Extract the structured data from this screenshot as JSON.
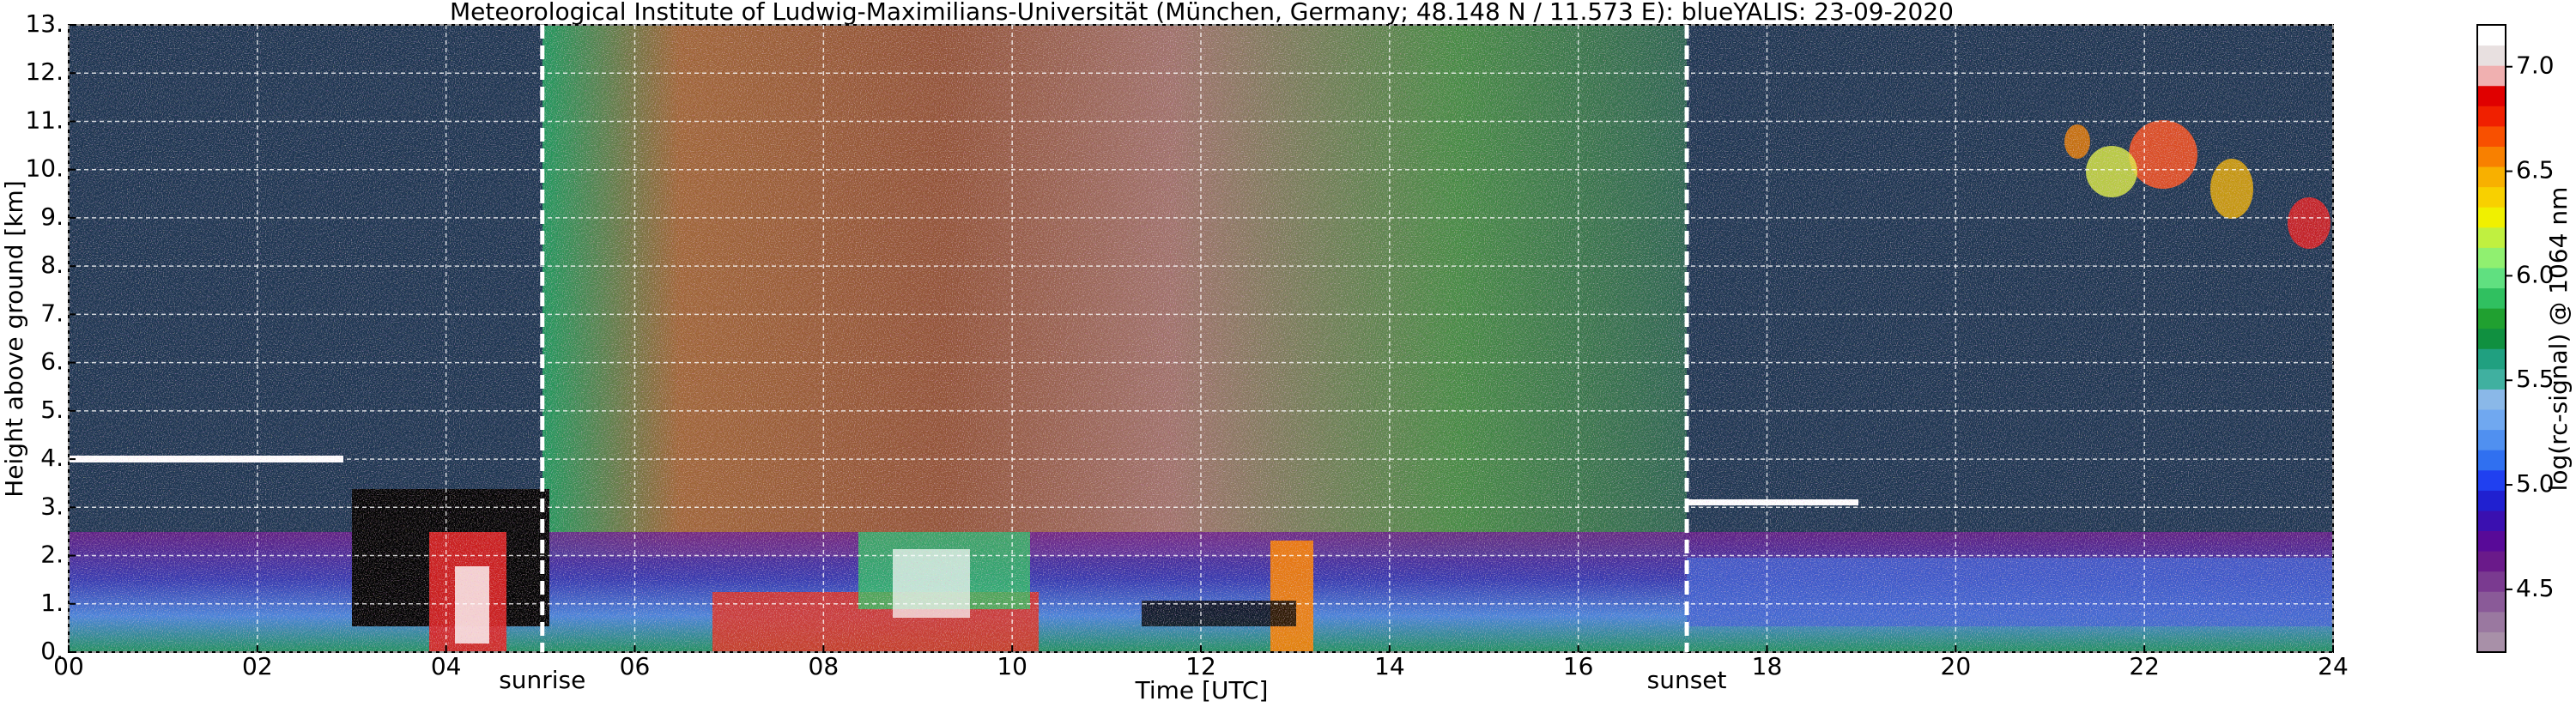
{
  "chart_data": {
    "type": "heatmap",
    "title": "Meteorological Institute of Ludwig-Maximilians-Universität (München, Germany; 48.148 N / 11.573 E):    blueYALIS: 23-09-2020",
    "x_label": "Time [UTC]",
    "y_label": "Height above ground [km]",
    "colorbar_label": "log(rc-signal) @ 1064 nm",
    "xlim": [
      0,
      24
    ],
    "xticks": [
      {
        "value": 0,
        "label": "00"
      },
      {
        "value": 2,
        "label": "02"
      },
      {
        "value": 4,
        "label": "04"
      },
      {
        "value": 6,
        "label": "06"
      },
      {
        "value": 8,
        "label": "08"
      },
      {
        "value": 10,
        "label": "10"
      },
      {
        "value": 12,
        "label": "12"
      },
      {
        "value": 14,
        "label": "14"
      },
      {
        "value": 16,
        "label": "16"
      },
      {
        "value": 18,
        "label": "18"
      },
      {
        "value": 20,
        "label": "20"
      },
      {
        "value": 22,
        "label": "22"
      },
      {
        "value": 24,
        "label": "24"
      }
    ],
    "ylim": [
      0,
      13
    ],
    "yticks": [
      {
        "value": 0,
        "label": "0."
      },
      {
        "value": 1,
        "label": "1."
      },
      {
        "value": 2,
        "label": "2."
      },
      {
        "value": 3,
        "label": "3."
      },
      {
        "value": 4,
        "label": "4."
      },
      {
        "value": 5,
        "label": "5."
      },
      {
        "value": 6,
        "label": "6."
      },
      {
        "value": 7,
        "label": "7."
      },
      {
        "value": 8,
        "label": "8."
      },
      {
        "value": 9,
        "label": "9."
      },
      {
        "value": 10,
        "label": "10."
      },
      {
        "value": 11,
        "label": "11."
      },
      {
        "value": 12,
        "label": "12."
      },
      {
        "value": 13,
        "label": "13."
      }
    ],
    "clim": [
      4.2,
      7.2
    ],
    "cticks": [
      {
        "value": 4.5,
        "label": "4.5"
      },
      {
        "value": 5,
        "label": "5.0"
      },
      {
        "value": 5.5,
        "label": "5.5"
      },
      {
        "value": 6,
        "label": "6.0"
      },
      {
        "value": 6.5,
        "label": "6.5"
      },
      {
        "value": 7,
        "label": "7.0"
      }
    ],
    "colormap": [
      "#a890a8",
      "#9a78a0",
      "#8a5a98",
      "#7a3a90",
      "#6a1a8a",
      "#580a98",
      "#3a10b0",
      "#2020d0",
      "#2040f0",
      "#3070f0",
      "#5090f0",
      "#70a8f0",
      "#8ab8e8",
      "#40b0a0",
      "#20a080",
      "#109040",
      "#20a030",
      "#30c060",
      "#60e080",
      "#90f070",
      "#c0f040",
      "#f0f000",
      "#f8d000",
      "#f8b000",
      "#f88000",
      "#f85000",
      "#f02000",
      "#e00000",
      "#f0b0b0",
      "#e8e0e0",
      "#ffffff"
    ],
    "grid": true,
    "annotations": [
      {
        "label": "sunrise",
        "x": 5.02
      },
      {
        "label": "sunset",
        "x": 17.15
      }
    ]
  }
}
